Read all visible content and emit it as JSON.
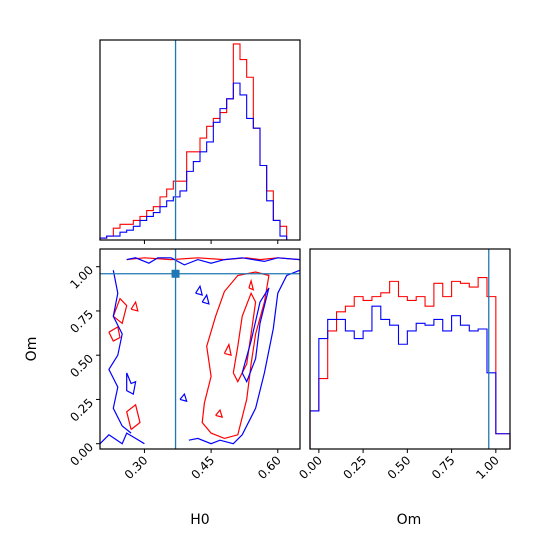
{
  "chart_data": [
    {
      "panel": "H0-marginal",
      "type": "histogram",
      "xlabel": "",
      "ylabel": "",
      "xlim": [
        0.2,
        0.65
      ],
      "ylim": [
        0,
        1.02
      ],
      "truth": 0.37,
      "bin_edges": [
        0.2,
        0.215,
        0.23,
        0.245,
        0.26,
        0.275,
        0.29,
        0.305,
        0.32,
        0.335,
        0.35,
        0.365,
        0.38,
        0.395,
        0.41,
        0.425,
        0.44,
        0.455,
        0.47,
        0.485,
        0.5,
        0.515,
        0.53,
        0.545,
        0.56,
        0.575,
        0.59,
        0.605,
        0.62,
        0.635,
        0.65
      ],
      "series": [
        {
          "name": "red",
          "color": "#ff0000",
          "values": [
            0.01,
            0.02,
            0.06,
            0.08,
            0.08,
            0.1,
            0.12,
            0.15,
            0.17,
            0.22,
            0.26,
            0.3,
            0.3,
            0.45,
            0.45,
            0.52,
            0.58,
            0.62,
            0.65,
            0.72,
            1.0,
            0.92,
            0.83,
            0.57,
            0.38,
            0.25,
            0.1,
            0.07,
            0.0,
            0.0
          ]
        },
        {
          "name": "blue",
          "color": "#0000ff",
          "values": [
            0.01,
            0.02,
            0.02,
            0.04,
            0.05,
            0.07,
            0.1,
            0.12,
            0.14,
            0.17,
            0.2,
            0.22,
            0.25,
            0.35,
            0.4,
            0.45,
            0.5,
            0.6,
            0.67,
            0.72,
            0.8,
            0.74,
            0.62,
            0.57,
            0.38,
            0.2,
            0.1,
            0.02,
            0.0,
            0.0
          ]
        }
      ]
    },
    {
      "panel": "Om-marginal",
      "type": "histogram",
      "xlabel": "Om",
      "ylabel": "",
      "xlim": [
        -0.05,
        1.08
      ],
      "ylim": [
        0,
        1.05
      ],
      "truth": 0.96,
      "x_ticks": [
        "0.00",
        "0.25",
        "0.50",
        "0.75",
        "1.00"
      ],
      "bin_edges": [
        -0.05,
        0.0,
        0.05,
        0.1,
        0.15,
        0.2,
        0.25,
        0.3,
        0.35,
        0.4,
        0.45,
        0.5,
        0.55,
        0.6,
        0.65,
        0.7,
        0.75,
        0.8,
        0.85,
        0.9,
        0.95,
        1.0,
        1.05,
        1.08
      ],
      "series": [
        {
          "name": "red",
          "color": "#ff0000",
          "values": [
            0.2,
            0.37,
            0.62,
            0.72,
            0.75,
            0.8,
            0.78,
            0.8,
            0.82,
            0.88,
            0.8,
            0.78,
            0.8,
            0.75,
            0.87,
            0.8,
            0.88,
            0.87,
            0.85,
            0.9,
            0.8,
            0.08,
            0.08
          ]
        },
        {
          "name": "blue",
          "color": "#0000ff",
          "values": [
            0.2,
            0.58,
            0.68,
            0.68,
            0.62,
            0.58,
            0.62,
            0.75,
            0.68,
            0.65,
            0.55,
            0.62,
            0.66,
            0.65,
            0.68,
            0.62,
            0.7,
            0.65,
            0.62,
            0.63,
            0.4,
            0.08,
            0.08
          ]
        }
      ]
    },
    {
      "panel": "H0-Om-joint",
      "type": "contour",
      "xlabel": "H0",
      "ylabel": "Om",
      "xlim": [
        0.2,
        0.65
      ],
      "ylim": [
        -0.03,
        1.1
      ],
      "x_ticks": [
        "0.30",
        "0.45",
        "0.60"
      ],
      "y_ticks": [
        "0.00",
        "0.25",
        "0.50",
        "0.75",
        "1.00"
      ],
      "truth": {
        "x": 0.37,
        "y": 0.96
      },
      "series": [
        {
          "name": "red",
          "color": "#ff0000",
          "contours": [
            [
              [
                0.26,
                1.04
              ],
              [
                0.3,
                1.05
              ],
              [
                0.36,
                1.04
              ],
              [
                0.42,
                1.05
              ],
              [
                0.48,
                1.04
              ],
              [
                0.53,
                1.05
              ],
              [
                0.56,
                1.04
              ],
              [
                0.6,
                1.05
              ],
              [
                0.65,
                1.04
              ]
            ],
            [
              [
                0.435,
                0.23
              ],
              [
                0.45,
                0.38
              ],
              [
                0.44,
                0.55
              ],
              [
                0.46,
                0.72
              ],
              [
                0.48,
                0.86
              ],
              [
                0.51,
                0.95
              ],
              [
                0.55,
                0.97
              ],
              [
                0.58,
                0.95
              ],
              [
                0.57,
                0.8
              ],
              [
                0.55,
                0.62
              ],
              [
                0.54,
                0.45
              ],
              [
                0.53,
                0.25
              ],
              [
                0.51,
                0.05
              ],
              [
                0.48,
                0.03
              ],
              [
                0.45,
                0.06
              ],
              [
                0.43,
                0.12
              ],
              [
                0.435,
                0.23
              ]
            ],
            [
              [
                0.5,
                0.4
              ],
              [
                0.51,
                0.55
              ],
              [
                0.52,
                0.72
              ],
              [
                0.54,
                0.85
              ],
              [
                0.55,
                0.8
              ],
              [
                0.54,
                0.62
              ],
              [
                0.53,
                0.45
              ],
              [
                0.51,
                0.35
              ],
              [
                0.5,
                0.4
              ]
            ],
            [
              [
                0.23,
                0.72
              ],
              [
                0.245,
                0.82
              ],
              [
                0.26,
                0.78
              ],
              [
                0.25,
                0.68
              ],
              [
                0.23,
                0.72
              ]
            ],
            [
              [
                0.22,
                0.63
              ],
              [
                0.24,
                0.66
              ],
              [
                0.245,
                0.6
              ],
              [
                0.23,
                0.58
              ],
              [
                0.22,
                0.63
              ]
            ],
            [
              [
                0.27,
                0.76
              ],
              [
                0.28,
                0.8
              ],
              [
                0.285,
                0.75
              ],
              [
                0.27,
                0.76
              ]
            ],
            [
              [
                0.27,
                0.08
              ],
              [
                0.26,
                0.18
              ],
              [
                0.28,
                0.22
              ],
              [
                0.29,
                0.12
              ],
              [
                0.27,
                0.08
              ]
            ],
            [
              [
                0.48,
                0.51
              ],
              [
                0.49,
                0.56
              ],
              [
                0.495,
                0.5
              ],
              [
                0.48,
                0.51
              ]
            ],
            [
              [
                0.46,
                0.16
              ],
              [
                0.47,
                0.19
              ],
              [
                0.475,
                0.15
              ],
              [
                0.46,
                0.16
              ]
            ],
            [
              [
                0.535,
                0.88
              ],
              [
                0.54,
                0.92
              ],
              [
                0.545,
                0.87
              ],
              [
                0.535,
                0.88
              ]
            ]
          ]
        },
        {
          "name": "blue",
          "color": "#0000ff",
          "contours": [
            [
              [
                0.26,
                1.04
              ],
              [
                0.28,
                1.05
              ],
              [
                0.31,
                1.02
              ],
              [
                0.33,
                1.05
              ],
              [
                0.36,
                1.05
              ],
              [
                0.39,
                1.01
              ],
              [
                0.42,
                1.04
              ],
              [
                0.45,
                1.02
              ],
              [
                0.48,
                1.04
              ],
              [
                0.52,
                1.05
              ],
              [
                0.57,
                1.03
              ],
              [
                0.6,
                1.05
              ],
              [
                0.65,
                1.04
              ]
            ],
            [
              [
                0.2,
                0.0
              ],
              [
                0.22,
                0.05
              ],
              [
                0.25,
                0.0
              ],
              [
                0.26,
                0.06
              ],
              [
                0.28,
                0.03
              ],
              [
                0.3,
                0.0
              ]
            ],
            [
              [
                0.4,
                0.02
              ],
              [
                0.42,
                0.03
              ],
              [
                0.45,
                0.0
              ],
              [
                0.47,
                0.02
              ],
              [
                0.5,
                0.0
              ],
              [
                0.52,
                0.05
              ],
              [
                0.55,
                0.2
              ],
              [
                0.57,
                0.4
              ],
              [
                0.59,
                0.65
              ],
              [
                0.6,
                0.85
              ],
              [
                0.62,
                0.95
              ],
              [
                0.65,
                0.98
              ]
            ],
            [
              [
                0.52,
                0.4
              ],
              [
                0.54,
                0.58
              ],
              [
                0.56,
                0.8
              ],
              [
                0.58,
                0.88
              ],
              [
                0.56,
                0.68
              ],
              [
                0.55,
                0.48
              ],
              [
                0.53,
                0.35
              ],
              [
                0.52,
                0.4
              ]
            ],
            [
              [
                0.23,
                0.98
              ],
              [
                0.24,
                0.85
              ],
              [
                0.23,
                0.72
              ],
              [
                0.25,
                0.62
              ],
              [
                0.24,
                0.5
              ],
              [
                0.22,
                0.42
              ],
              [
                0.24,
                0.32
              ],
              [
                0.23,
                0.2
              ],
              [
                0.25,
                0.1
              ],
              [
                0.27,
                0.06
              ]
            ],
            [
              [
                0.26,
                0.4
              ],
              [
                0.27,
                0.34
              ],
              [
                0.28,
                0.35
              ],
              [
                0.275,
                0.28
              ],
              [
                0.26,
                0.3
              ],
              [
                0.26,
                0.4
              ]
            ],
            [
              [
                0.415,
                0.85
              ],
              [
                0.425,
                0.89
              ],
              [
                0.43,
                0.84
              ],
              [
                0.415,
                0.85
              ]
            ],
            [
              [
                0.43,
                0.8
              ],
              [
                0.44,
                0.84
              ],
              [
                0.445,
                0.79
              ],
              [
                0.43,
                0.8
              ]
            ],
            [
              [
                0.38,
                0.25
              ],
              [
                0.39,
                0.28
              ],
              [
                0.395,
                0.24
              ],
              [
                0.38,
                0.25
              ]
            ]
          ]
        }
      ]
    }
  ]
}
